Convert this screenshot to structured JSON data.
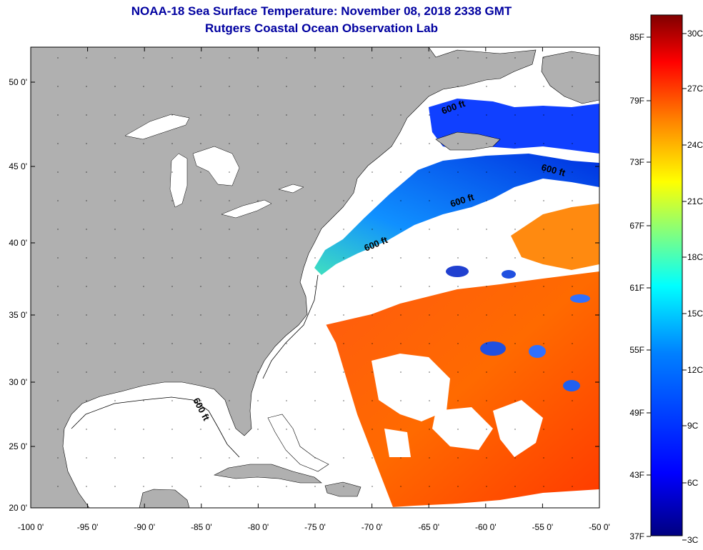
{
  "title": {
    "line1": "NOAA-18 Sea Surface Temperature:  November 08, 2018 2338 GMT",
    "line2": "Rutgers Coastal Ocean Observation Lab"
  },
  "axes": {
    "x_ticks": [
      "-100 0'",
      "-95 0'",
      "-90 0'",
      "-85 0'",
      "-80 0'",
      "-75 0'",
      "-70 0'",
      "-65 0'",
      "-60 0'",
      "-55 0'",
      "-50 0'"
    ],
    "y_ticks": [
      "50 0'",
      "45 0'",
      "40 0'",
      "35 0'",
      "30 0'",
      "25 0'",
      "20 0'"
    ]
  },
  "contour_labels": [
    "600 ft",
    "600 ft",
    "600 ft",
    "600 ft",
    "600 ft"
  ],
  "colorbar": {
    "f_labels": [
      "85F",
      "79F",
      "73F",
      "67F",
      "61F",
      "55F",
      "49F",
      "43F",
      "37F"
    ],
    "c_labels": [
      "30C",
      "27C",
      "24C",
      "21C",
      "18C",
      "15C",
      "12C",
      "9C",
      "6C",
      "3C"
    ],
    "colors": [
      "#800000",
      "#ff0000",
      "#ff8000",
      "#ffff00",
      "#80ff80",
      "#00ffff",
      "#0080ff",
      "#0000ff",
      "#000080"
    ]
  },
  "colors": {
    "land": "#b0b0b0",
    "water": "#ffffff",
    "title": "#0000a0"
  }
}
